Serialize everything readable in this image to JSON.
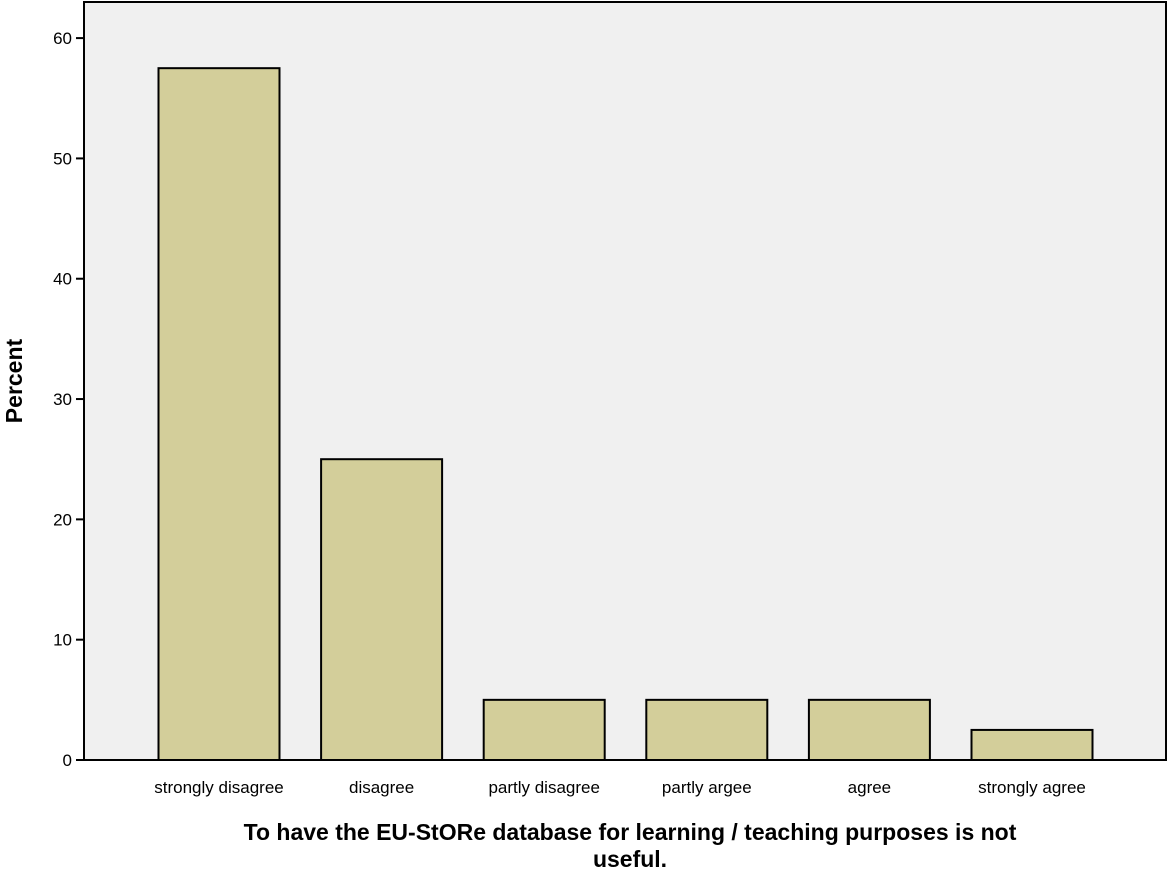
{
  "chart_data": {
    "type": "bar",
    "title": "",
    "xlabel": "To have the EU-StORe database for learning / teaching purposes is not useful.",
    "xlabel_lines": [
      "To have the EU-StORe database for learning / teaching purposes is not",
      "useful."
    ],
    "ylabel": "Percent",
    "categories": [
      "strongly disagree",
      "disagree",
      "partly disagree",
      "partly argee",
      "agree",
      "strongly agree"
    ],
    "values": [
      57.5,
      25.0,
      5.0,
      5.0,
      5.0,
      2.5
    ],
    "ylim": [
      0,
      63
    ],
    "yticks": [
      0,
      10,
      20,
      30,
      40,
      50,
      60
    ],
    "grid": false,
    "colors": {
      "bar_fill": "#d3ce9a",
      "bar_stroke": "#000000",
      "plot_background": "#f0f0f0",
      "page_background": "#ffffff"
    }
  }
}
